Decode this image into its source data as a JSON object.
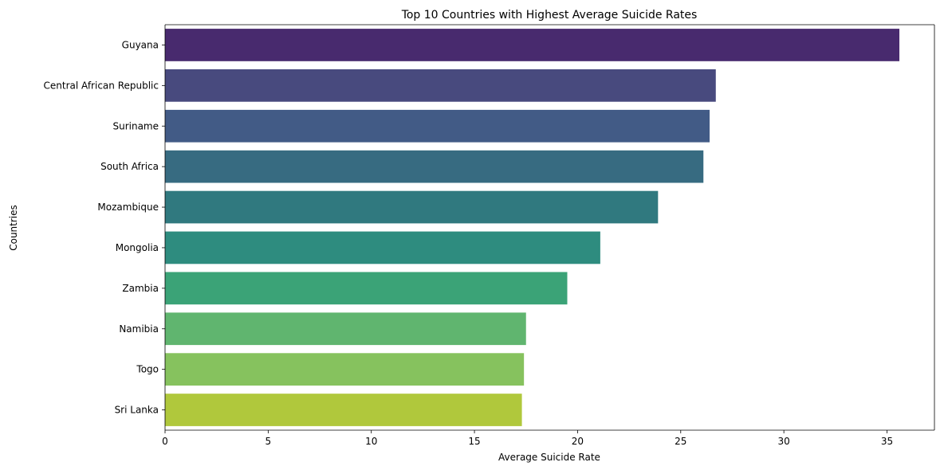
{
  "chart_data": {
    "type": "bar",
    "orientation": "horizontal",
    "title": "Top 10 Countries with Highest Average Suicide Rates",
    "xlabel": "Average Suicide Rate",
    "ylabel": "Countries",
    "xlim": [
      0,
      37.3
    ],
    "xticks": [
      0,
      5,
      10,
      15,
      20,
      25,
      30,
      35
    ],
    "grid": false,
    "legend": "none",
    "categories": [
      "Guyana",
      "Central African Republic",
      "Suriname",
      "South Africa",
      "Mozambique",
      "Mongolia",
      "Zambia",
      "Namibia",
      "Togo",
      "Sri Lanka"
    ],
    "values": [
      35.6,
      26.7,
      26.4,
      26.1,
      23.9,
      21.1,
      19.5,
      17.5,
      17.4,
      17.3
    ],
    "colors": [
      "#482a6e",
      "#484a7e",
      "#425b86",
      "#376b81",
      "#30797f",
      "#2e8c7f",
      "#3ba377",
      "#60b56f",
      "#86c25e",
      "#b0c83c"
    ]
  }
}
